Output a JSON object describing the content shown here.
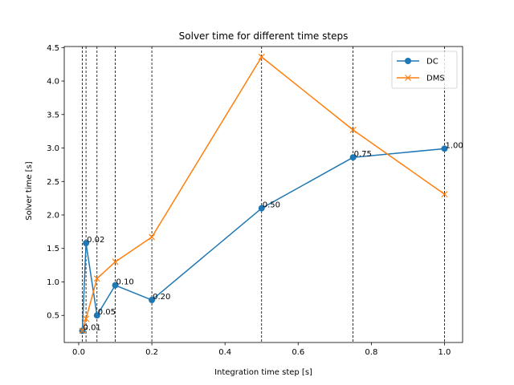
{
  "chart_data": {
    "type": "line",
    "title": "Solver time for different time steps",
    "xlabel": "Integration time step [s]",
    "ylabel": "Solver time [s]",
    "xlim": [
      -0.0395,
      1.0495
    ],
    "ylim": [
      0.0955,
      4.5155
    ],
    "xticks": [
      0.0,
      0.2,
      0.4,
      0.6,
      0.8,
      1.0
    ],
    "xtick_labels": [
      "0.0",
      "0.2",
      "0.4",
      "0.6",
      "0.8",
      "1.0"
    ],
    "yticks": [
      0.5,
      1.0,
      1.5,
      2.0,
      2.5,
      3.0,
      3.5,
      4.0,
      4.5
    ],
    "ytick_labels": [
      "0.5",
      "1.0",
      "1.5",
      "2.0",
      "2.5",
      "3.0",
      "3.5",
      "4.0",
      "4.5"
    ],
    "vlines": [
      0.01,
      0.02,
      0.05,
      0.1,
      0.2,
      0.5,
      0.75,
      1.0
    ],
    "legend_position": "top-right",
    "x": [
      0.01,
      0.02,
      0.05,
      0.1,
      0.2,
      0.5,
      0.75,
      1.0
    ],
    "series": [
      {
        "name": "DC",
        "color": "#1f77b4",
        "marker": "circle",
        "values": [
          0.27,
          1.58,
          0.5,
          0.95,
          0.73,
          2.1,
          2.86,
          2.99
        ]
      },
      {
        "name": "DMS",
        "color": "#ff7f0e",
        "marker": "x",
        "values": [
          0.27,
          0.45,
          1.05,
          1.3,
          1.67,
          4.36,
          3.27,
          2.31
        ]
      }
    ],
    "annotations": [
      "0.01",
      "0.02",
      "0.05",
      "0.10",
      "0.20",
      "0.50",
      "0.75",
      "1.00"
    ]
  }
}
